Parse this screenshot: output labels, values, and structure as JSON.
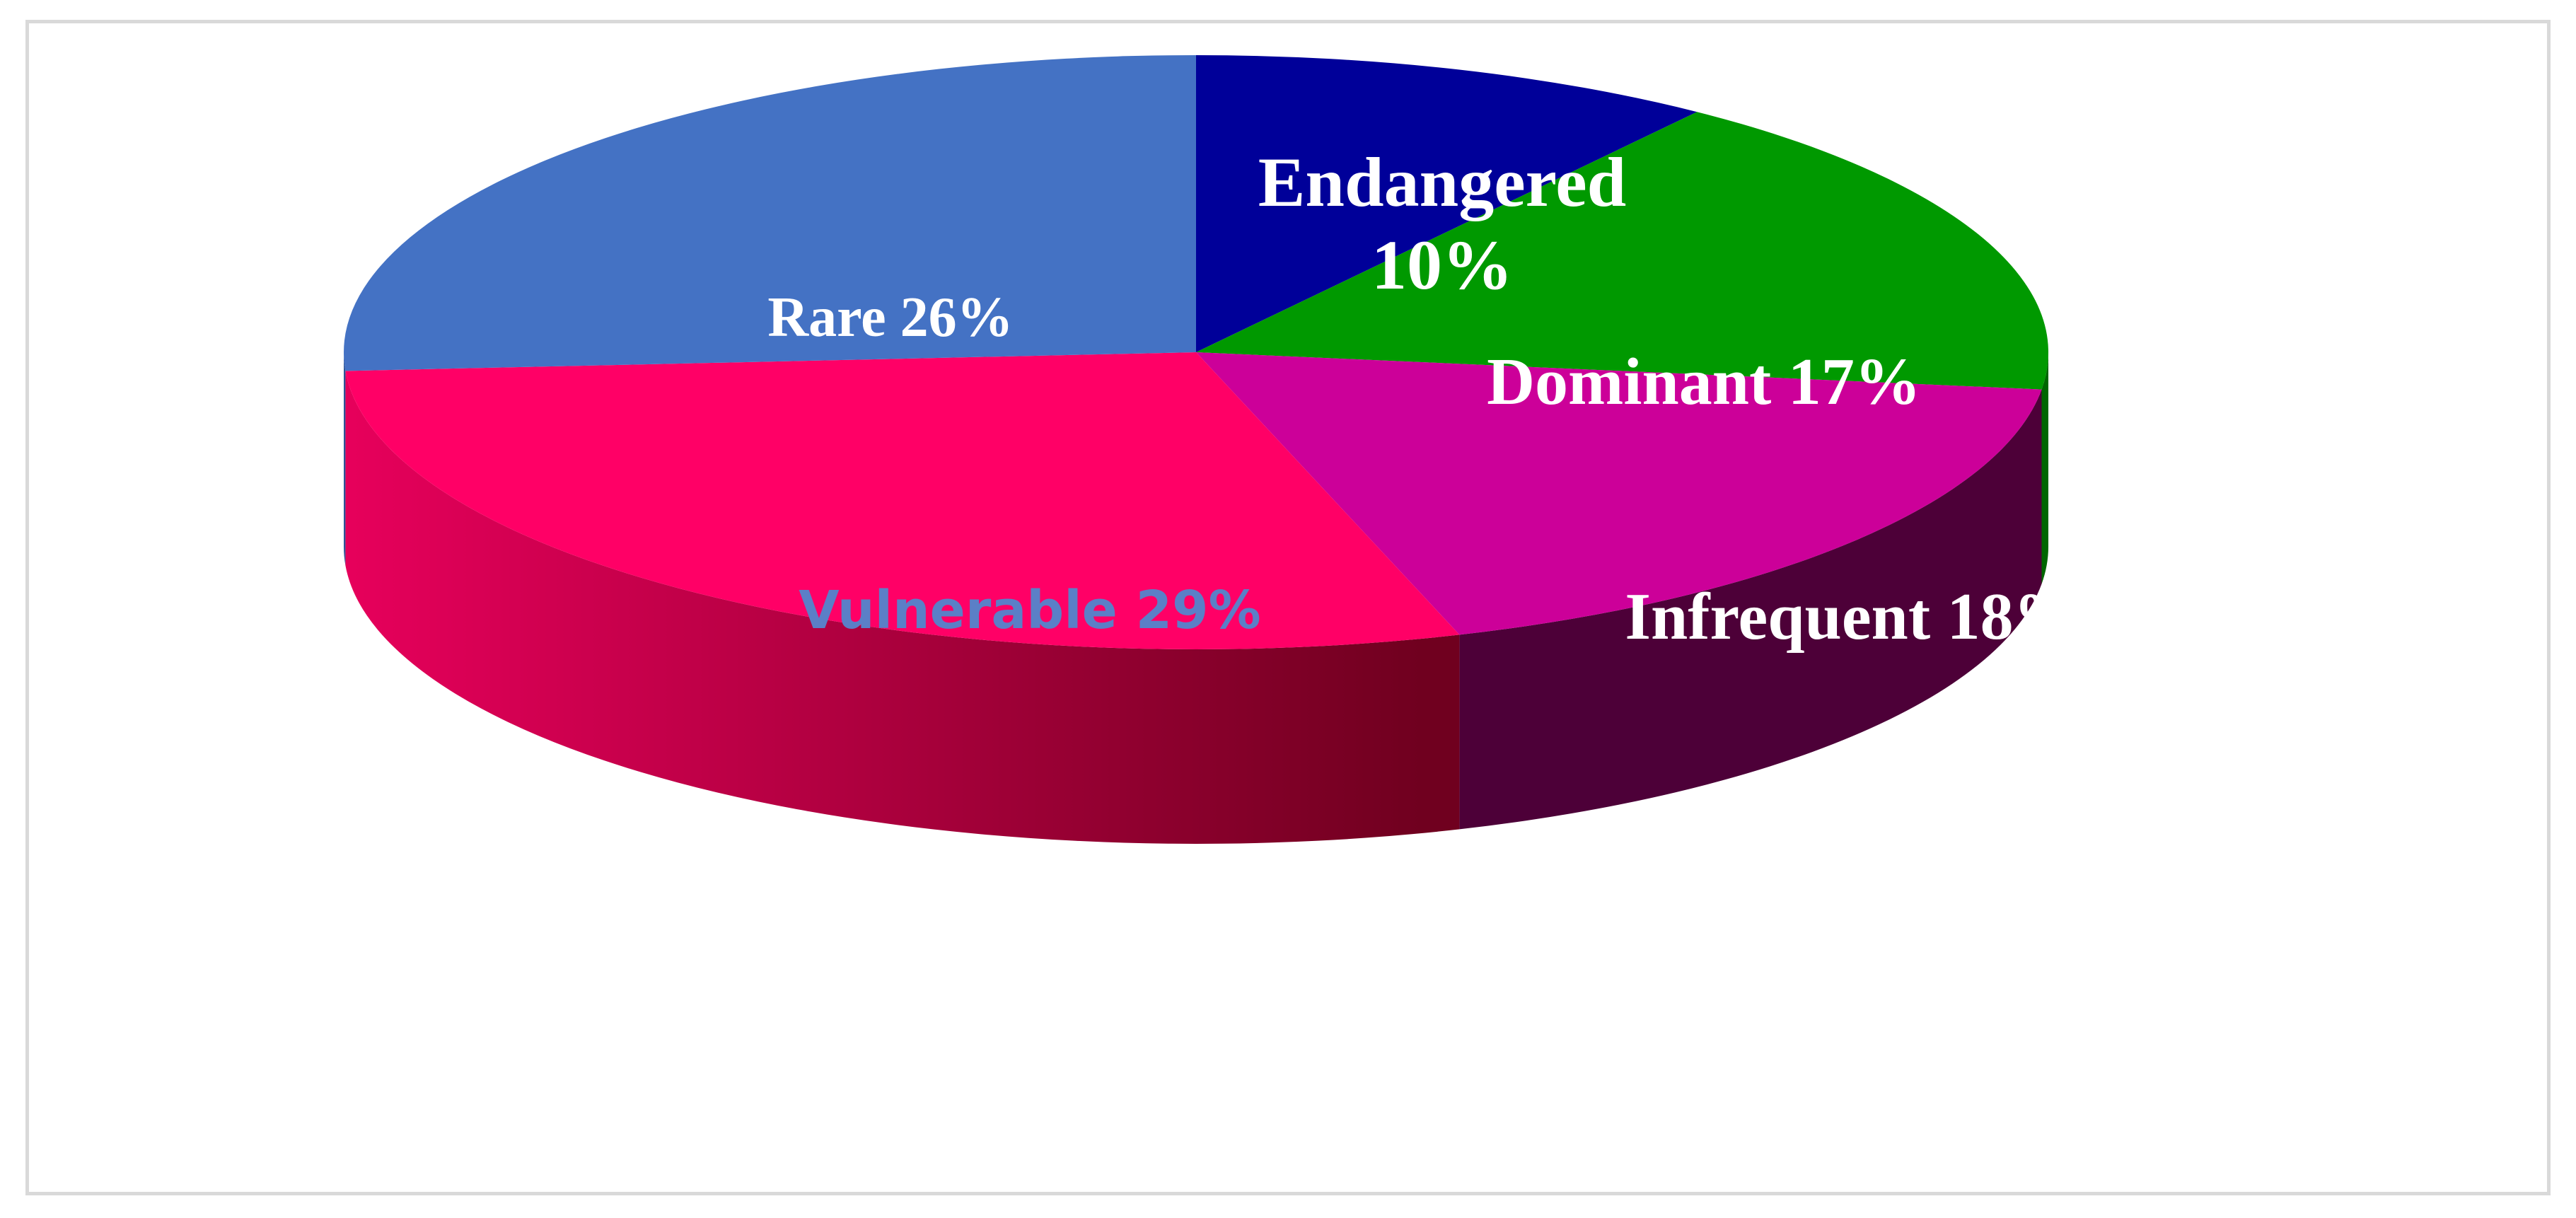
{
  "chart_data": {
    "type": "pie",
    "style": "3d",
    "legend": "none",
    "slices": [
      {
        "label": "Endangered",
        "value": 10,
        "display": "Endangered 10%",
        "color": "#000099",
        "side_color": "#000066",
        "label_color": "#ffffff"
      },
      {
        "label": "Dominant",
        "value": 17,
        "display": "Dominant 17%",
        "color": "#009900",
        "side_color": "#006600",
        "label_color": "#ffffff"
      },
      {
        "label": "Infrequent",
        "value": 18,
        "display": "Infrequent 18%",
        "color": "#cc0099",
        "side_color": "#4d0038",
        "label_color": "#ffffff"
      },
      {
        "label": "Vulnerable",
        "value": 29,
        "display": "Vulnerable 29%",
        "color": "#ff0066",
        "side_color": "#cc0052",
        "label_color": "#5b7fc7"
      },
      {
        "label": "Rare",
        "value": 26,
        "display": "Rare 26%",
        "color": "#4472c4",
        "side_color": "#2f5597",
        "label_color": "#ffffff"
      }
    ]
  }
}
